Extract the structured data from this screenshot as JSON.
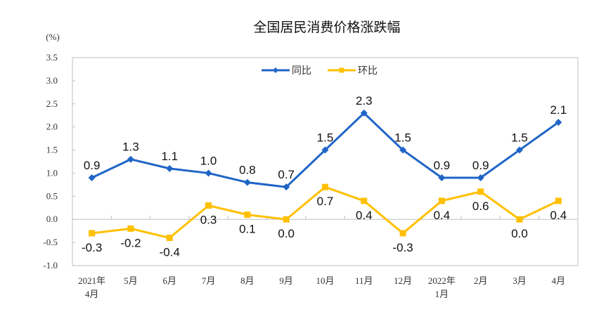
{
  "chart_data": {
    "type": "line",
    "title": "全国居民消费价格涨跌幅",
    "ylabel": "(%)",
    "ylim": [
      -1.0,
      3.5
    ],
    "yticks": [
      "3.5",
      "3.0",
      "2.5",
      "2.0",
      "1.5",
      "1.0",
      "0.5",
      "0.0",
      "-0.5",
      "-1.0"
    ],
    "categories": [
      [
        "2021年",
        "4月"
      ],
      [
        "5月"
      ],
      [
        "6月"
      ],
      [
        "7月"
      ],
      [
        "8月"
      ],
      [
        "9月"
      ],
      [
        "10月"
      ],
      [
        "11月"
      ],
      [
        "12月"
      ],
      [
        "2022年",
        "1月"
      ],
      [
        "2月"
      ],
      [
        "3月"
      ],
      [
        "4月"
      ]
    ],
    "grid": false,
    "legend_position": "top-center",
    "series": [
      {
        "name": "同比",
        "color": "#1F65C6",
        "marker": "diamond",
        "values": [
          0.9,
          1.3,
          1.1,
          1.0,
          0.8,
          0.7,
          1.5,
          2.3,
          1.5,
          0.9,
          0.9,
          1.5,
          2.1
        ],
        "labels": [
          "0.9",
          "1.3",
          "1.1",
          "1.0",
          "0.8",
          "0.7",
          "1.5",
          "2.3",
          "1.5",
          "0.9",
          "0.9",
          "1.5",
          "2.1"
        ]
      },
      {
        "name": "环比",
        "color": "#FFC000",
        "marker": "square",
        "values": [
          -0.3,
          -0.2,
          -0.4,
          0.3,
          0.1,
          0.0,
          0.7,
          0.4,
          -0.3,
          0.4,
          0.6,
          0.0,
          0.4
        ],
        "labels": [
          "-0.3",
          "-0.2",
          "-0.4",
          "0.3",
          "0.1",
          "0.0",
          "0.7",
          "0.4",
          "-0.3",
          "0.4",
          "0.6",
          "0.0",
          "0.4"
        ]
      }
    ]
  }
}
